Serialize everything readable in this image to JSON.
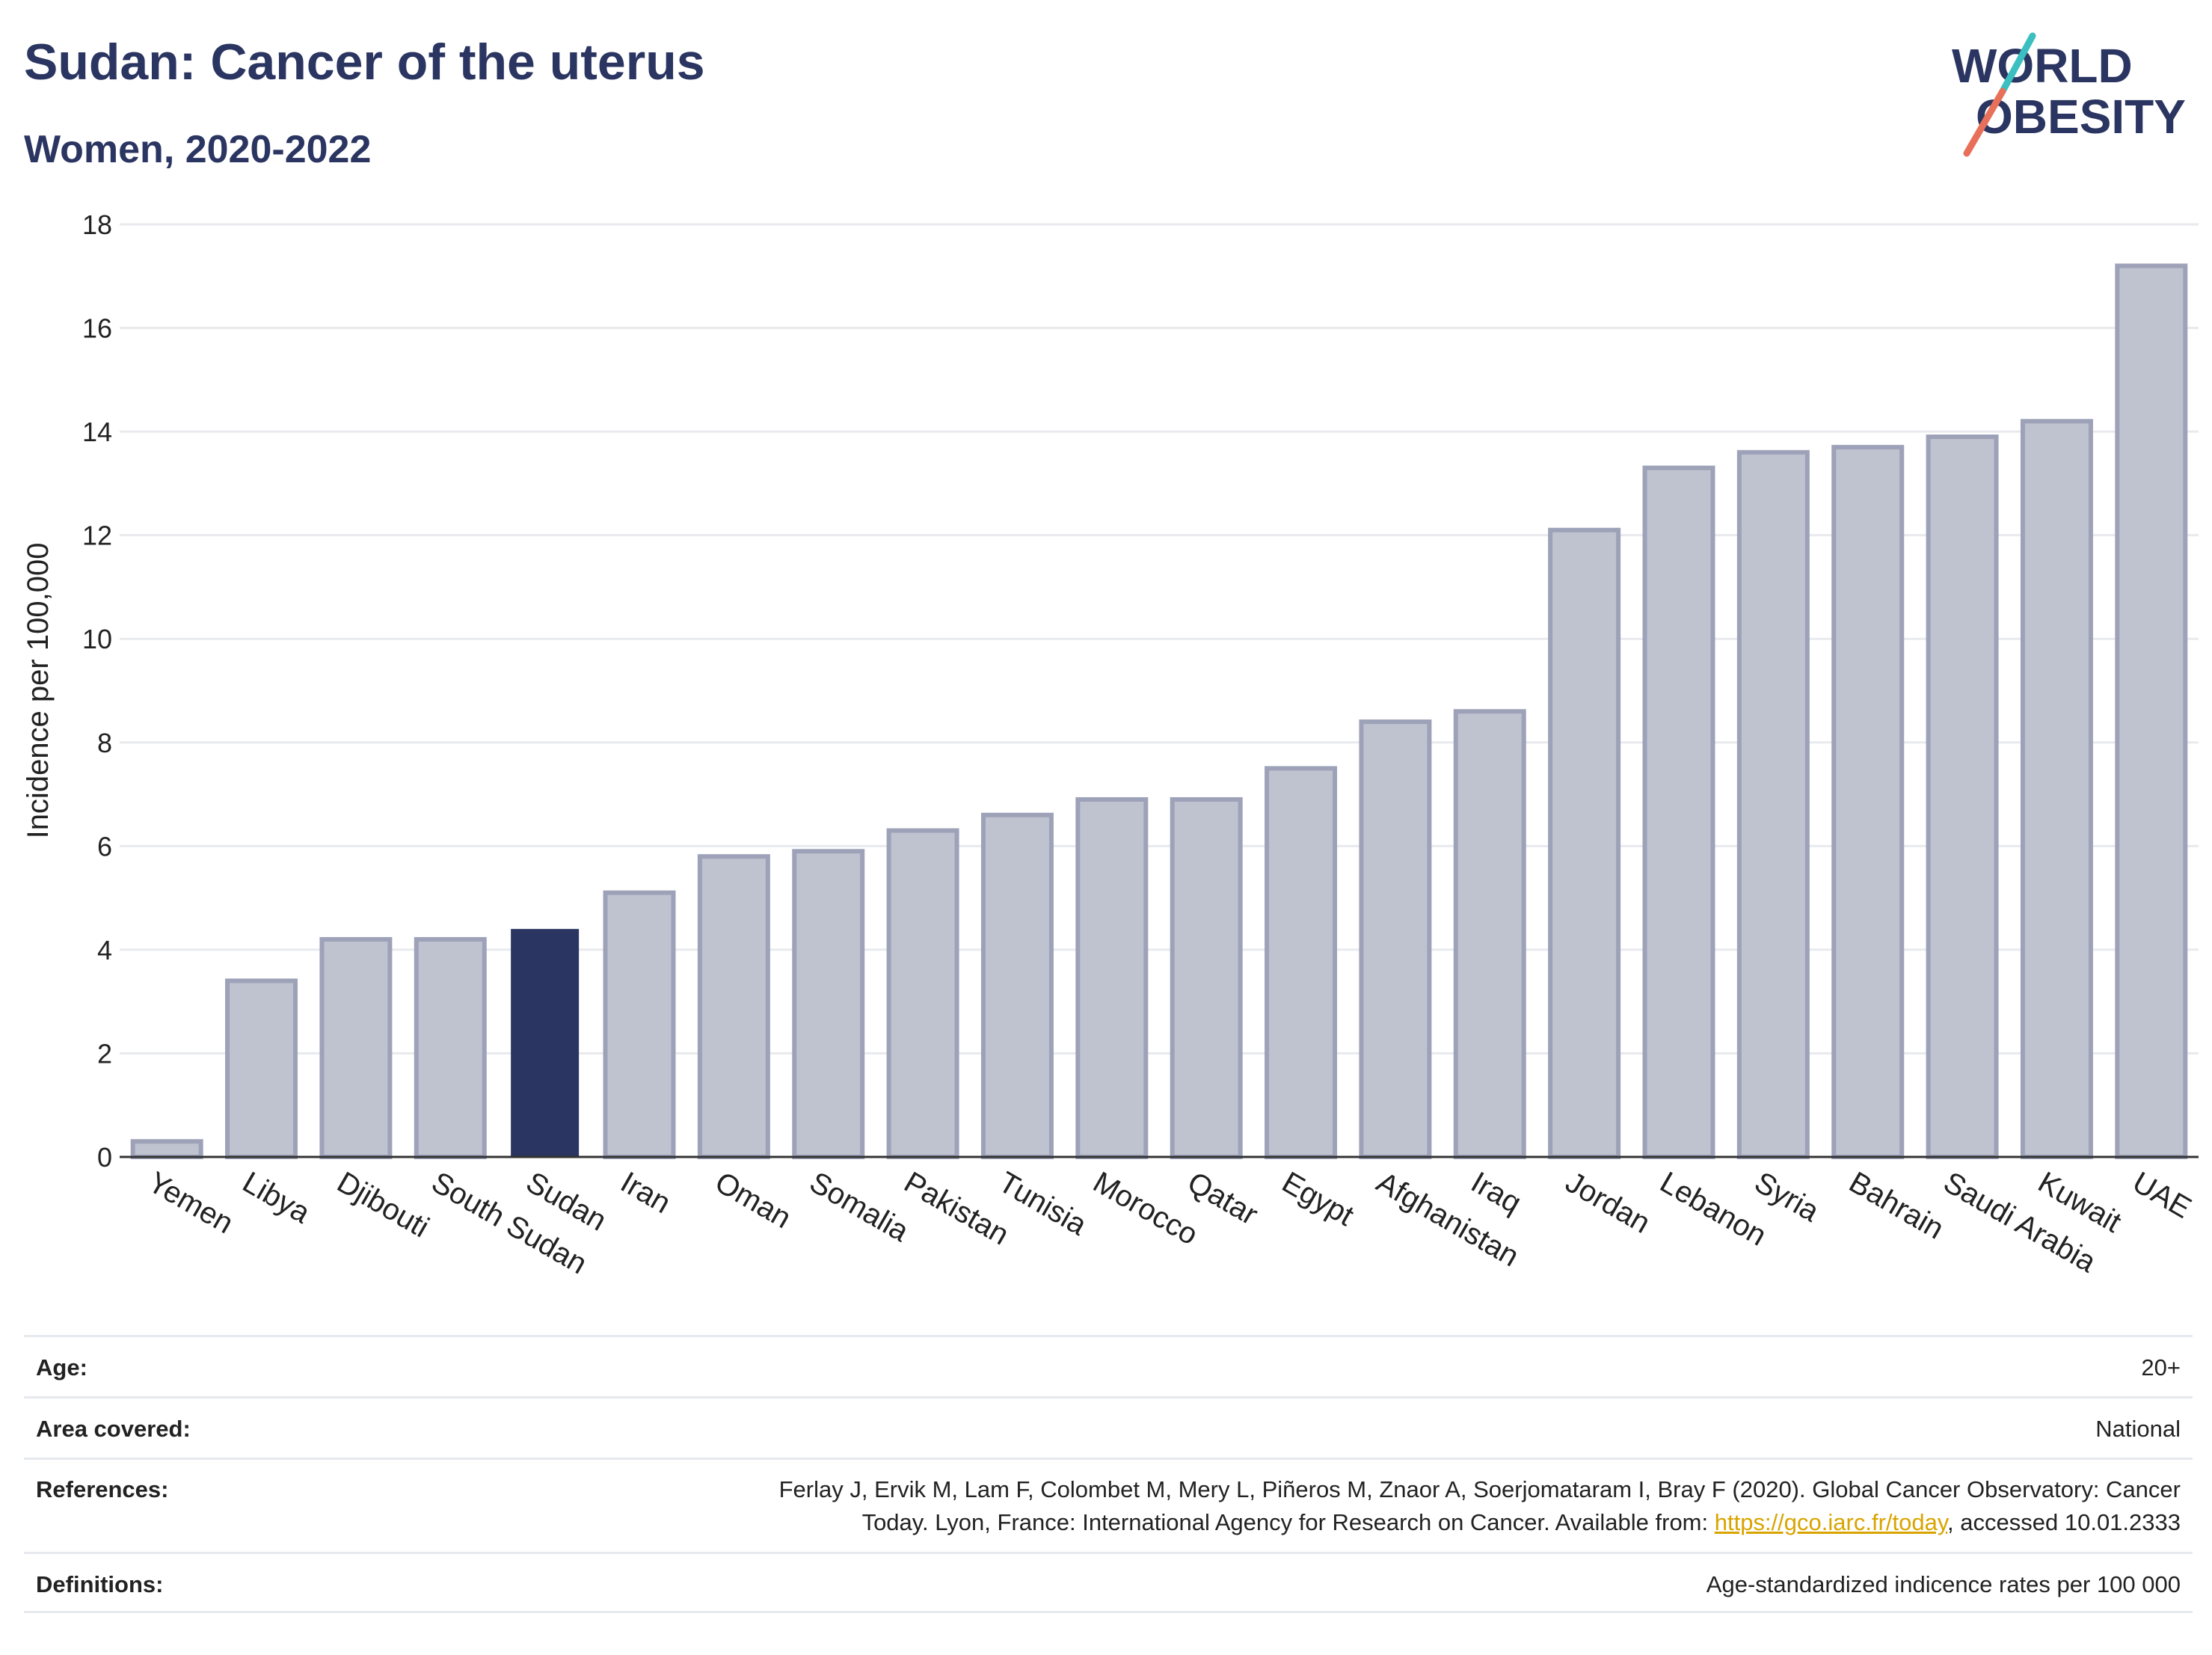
{
  "title": "Sudan: Cancer of the uterus",
  "subtitle": "Women, 2020-2022",
  "logo": {
    "line1": "WORLD",
    "line2": "OBESITY"
  },
  "colors": {
    "bar": "#bfc2cf",
    "bar_border": "#9ea2b8",
    "highlight": "#2b3561",
    "title": "#2b3561",
    "logo_slash_top": "#3bbfc1",
    "logo_slash_bottom": "#e8705a"
  },
  "chart_data": {
    "type": "bar",
    "categories": [
      "Yemen",
      "Libya",
      "Djibouti",
      "South Sudan",
      "Sudan",
      "Iran",
      "Oman",
      "Somalia",
      "Pakistan",
      "Tunisia",
      "Morocco",
      "Qatar",
      "Egypt",
      "Afghanistan",
      "Iraq",
      "Jordan",
      "Lebanon",
      "Syria",
      "Bahrain",
      "Saudi Arabia",
      "Kuwait",
      "UAE"
    ],
    "values": [
      0.3,
      3.4,
      4.2,
      4.2,
      4.4,
      5.1,
      5.8,
      5.9,
      6.3,
      6.6,
      6.9,
      6.9,
      7.5,
      8.4,
      8.6,
      12.1,
      13.3,
      13.6,
      13.7,
      13.9,
      14.2,
      17.2
    ],
    "highlight": "Sudan",
    "ylabel": "Incidence per 100,000",
    "xlabel": "",
    "ylim": [
      0,
      18
    ],
    "yticks": [
      0,
      2,
      4,
      6,
      8,
      10,
      12,
      14,
      16,
      18
    ],
    "grid": true
  },
  "meta": [
    {
      "label": "Age:",
      "value": "20+"
    },
    {
      "label": "Area covered:",
      "value": "National"
    },
    {
      "label": "References:",
      "value_line1": "Ferlay J, Ervik M, Lam F, Colombet M, Mery L, Piñeros M, Znaor A, Soerjomataram I, Bray F (2020). Global Cancer Observatory: Cancer",
      "value_line2_pre": "Today. Lyon, France: International Agency for Research on Cancer. Available from: ",
      "value_link": "https://gco.iarc.fr/today",
      "value_line2_post": ", accessed 10.01.2333"
    },
    {
      "label": "Definitions:",
      "value": "Age-standardized indicence rates per 100 000"
    }
  ]
}
